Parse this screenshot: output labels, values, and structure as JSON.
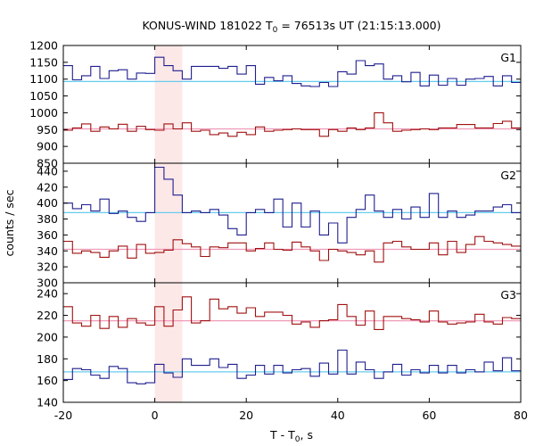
{
  "chart_data": {
    "type": "line",
    "title_main": "KONUS-WIND 181022 T",
    "title_sub": "0",
    "title_rest": " = 76513s UT (21:15:13.000)",
    "xlabel_main": "T - T",
    "xlabel_sub": "0",
    "xlabel_rest": ", s",
    "ylabel": "counts / sec",
    "xlim": [
      -20,
      80
    ],
    "x_ticks": [
      "-20",
      "0",
      "20",
      "40",
      "60",
      "80"
    ],
    "highlight": {
      "x0": 0,
      "x1": 6,
      "color": "#fde8e8"
    },
    "colors": {
      "blue": "#1f1f8f",
      "red": "#a01010",
      "cyan": "#66ccee",
      "pink": "#f09ab8"
    },
    "x": [
      -20,
      -18,
      -16,
      -14,
      -12,
      -10,
      -8,
      -6,
      -4,
      -2,
      0,
      2,
      4,
      6,
      8,
      10,
      12,
      14,
      16,
      18,
      20,
      22,
      24,
      26,
      28,
      30,
      32,
      34,
      36,
      38,
      40,
      42,
      44,
      46,
      48,
      50,
      52,
      54,
      56,
      58,
      60,
      62,
      64,
      66,
      68,
      70,
      72,
      74,
      76,
      78
    ],
    "panels": [
      {
        "label": "G1",
        "ylim": [
          850,
          1200
        ],
        "y_ticks": [
          "850",
          "900",
          "950",
          "1000",
          "1050",
          "1100",
          "1150",
          "1200"
        ],
        "series": [
          {
            "color_key": "blue",
            "background_level": 1093,
            "values": [
              1140,
              1098,
              1110,
              1138,
              1102,
              1125,
              1128,
              1100,
              1118,
              1117,
              1165,
              1140,
              1125,
              1100,
              1138,
              1138,
              1138,
              1132,
              1138,
              1115,
              1140,
              1085,
              1105,
              1095,
              1110,
              1087,
              1080,
              1078,
              1090,
              1078,
              1122,
              1115,
              1155,
              1140,
              1145,
              1100,
              1110,
              1092,
              1120,
              1080,
              1112,
              1082,
              1102,
              1082,
              1100,
              1102,
              1108,
              1080,
              1110,
              1090
            ]
          },
          {
            "color_key": "red",
            "background_level": 952,
            "values": [
              948,
              955,
              967,
              945,
              958,
              952,
              966,
              945,
              960,
              950,
              948,
              967,
              952,
              970,
              945,
              948,
              935,
              940,
              930,
              942,
              935,
              958,
              945,
              948,
              950,
              952,
              950,
              950,
              930,
              950,
              945,
              955,
              950,
              955,
              1000,
              970,
              945,
              948,
              950,
              952,
              950,
              955,
              955,
              965,
              965,
              955,
              955,
              968,
              975,
              955
            ]
          }
        ]
      },
      {
        "label": "G2",
        "ylim": [
          300,
          450
        ],
        "y_ticks": [
          "300",
          "320",
          "340",
          "360",
          "380",
          "400",
          "420",
          "440"
        ],
        "series": [
          {
            "color_key": "blue",
            "background_level": 388,
            "values": [
              400,
              393,
              398,
              390,
              405,
              387,
              390,
              382,
              377,
              388,
              445,
              430,
              410,
              388,
              390,
              388,
              392,
              385,
              368,
              360,
              388,
              392,
              388,
              405,
              370,
              400,
              370,
              390,
              360,
              375,
              350,
              382,
              392,
              410,
              390,
              382,
              392,
              380,
              395,
              382,
              412,
              382,
              390,
              382,
              385,
              390,
              390,
              395,
              398,
              388
            ]
          },
          {
            "color_key": "red",
            "background_level": 342,
            "values": [
              352,
              337,
              340,
              338,
              332,
              340,
              346,
              331,
              348,
              337,
              338,
              341,
              354,
              349,
              345,
              333,
              345,
              344,
              350,
              350,
              340,
              343,
              350,
              342,
              341,
              351,
              345,
              340,
              328,
              342,
              340,
              338,
              335,
              340,
              326,
              350,
              352,
              345,
              342,
              342,
              350,
              335,
              352,
              338,
              348,
              358,
              352,
              350,
              348,
              346
            ]
          }
        ]
      },
      {
        "label": "G3",
        "ylim": [
          140,
          250
        ],
        "y_ticks": [
          "140",
          "160",
          "180",
          "200",
          "220",
          "240"
        ],
        "series": [
          {
            "color_key": "red",
            "background_level": 215,
            "values": [
              228,
              213,
              210,
              220,
              208,
              219,
              209,
              217,
              213,
              211,
              228,
              210,
              225,
              237,
              213,
              215,
              235,
              226,
              228,
              222,
              227,
              219,
              223,
              223,
              220,
              212,
              214,
              209,
              215,
              216,
              230,
              219,
              211,
              224,
              207,
              219,
              219,
              217,
              216,
              214,
              224,
              214,
              212,
              213,
              214,
              221,
              214,
              212,
              218,
              217
            ]
          },
          {
            "color_key": "blue",
            "background_level": 168,
            "values": [
              161,
              171,
              170,
              165,
              162,
              173,
              171,
              158,
              157,
              158,
              175,
              167,
              163,
              180,
              174,
              174,
              180,
              172,
              175,
              162,
              165,
              174,
              166,
              174,
              167,
              170,
              171,
              164,
              176,
              166,
              188,
              166,
              177,
              170,
              162,
              168,
              175,
              165,
              170,
              167,
              174,
              167,
              174,
              167,
              170,
              168,
              177,
              169,
              181,
              169
            ]
          }
        ]
      }
    ]
  }
}
